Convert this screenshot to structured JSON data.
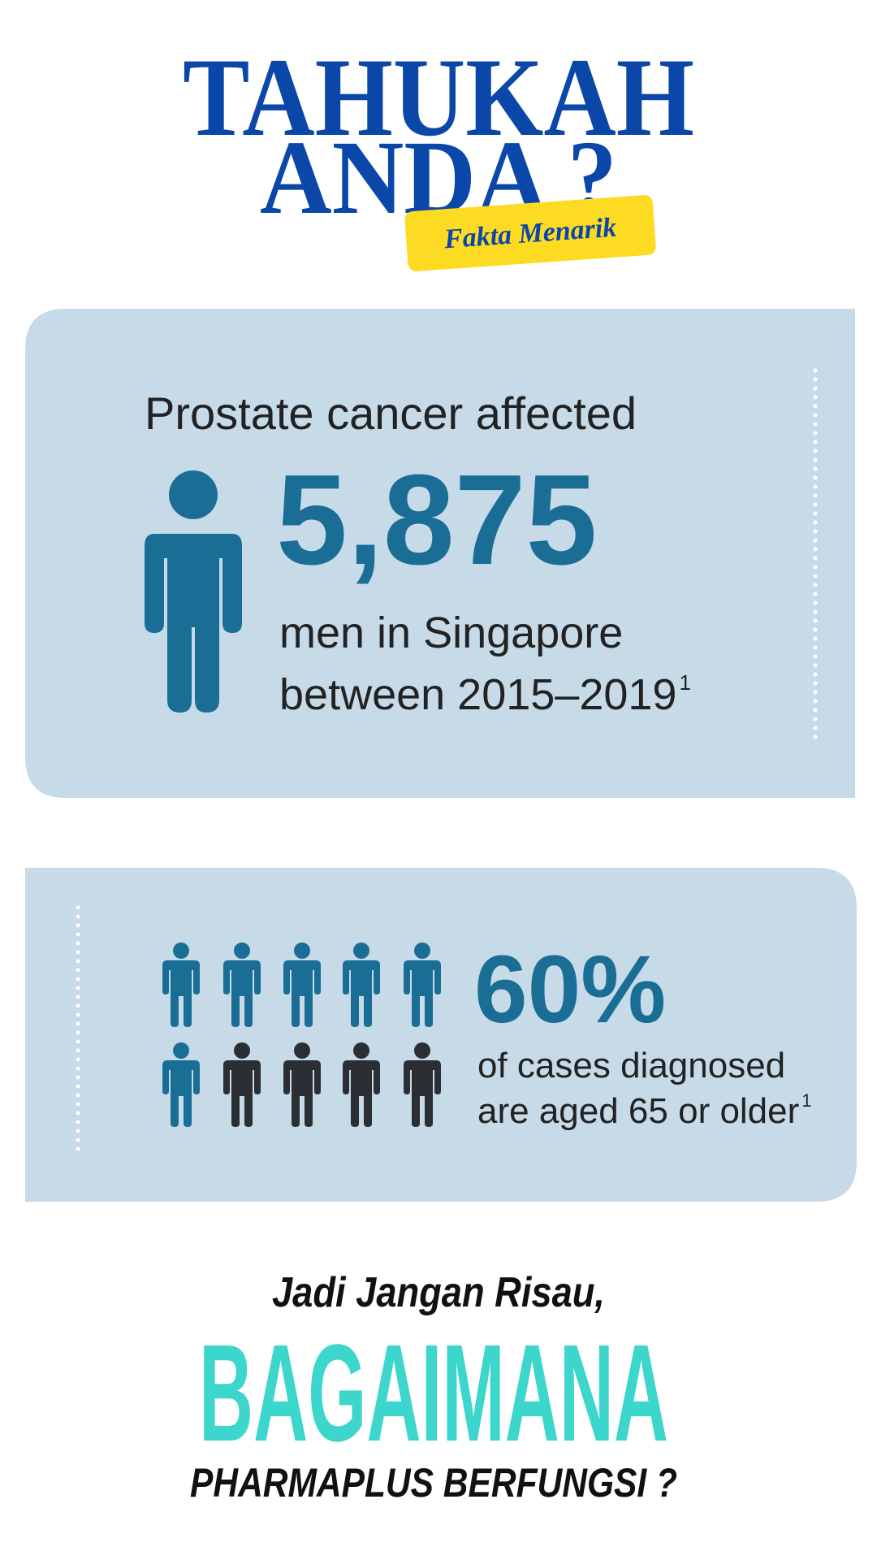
{
  "header": {
    "title_line1": "TAHUKAH",
    "title_line2": "ANDA ?",
    "badge": "Fakta Menarik"
  },
  "card1": {
    "heading": "Prostate cancer affected",
    "number": "5,875",
    "line1": "men in Singapore",
    "line2": "between 2015–2019",
    "footnote": "1"
  },
  "card2": {
    "number": "60%",
    "line1": "of cases diagnosed",
    "line2": "are aged 65 or older",
    "footnote": "1"
  },
  "footer": {
    "lead": "Jadi Jangan Risau,",
    "headline": "BAGAIMANA",
    "tagline": "PHARMAPLUS BERFUNGSI ?"
  }
}
